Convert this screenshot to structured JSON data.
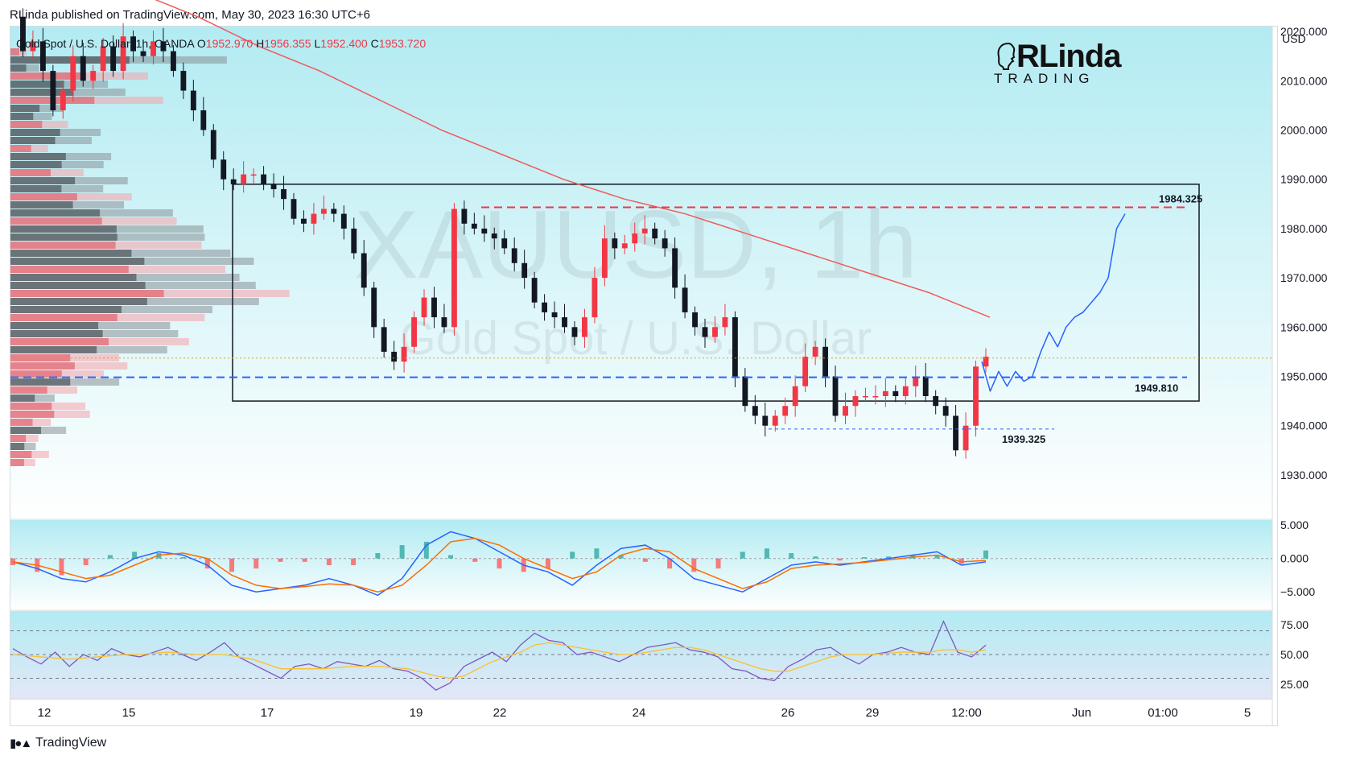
{
  "publisher_line": "RLinda published on TradingView.com, May 30, 2023 16:30 UTC+6",
  "symbol": {
    "name": "Gold Spot / U.S. Dollar, 1h, OANDA",
    "o_label": "O",
    "o": "1952.970",
    "h_label": "H",
    "h": "1956.355",
    "l_label": "L",
    "l": "1952.400",
    "c_label": "C",
    "c": "1953.720"
  },
  "currency": "USD",
  "watermark": {
    "line1": "XAUUSD, 1h",
    "line2": "Gold Spot / U.S. Dollar"
  },
  "logo": {
    "main": "RLinda",
    "sub": "TRADING"
  },
  "brand": "TradingView",
  "colors": {
    "bg_top": "#b2ebf2",
    "bull": "#f23645",
    "bear": "#131722",
    "ma": "#f05a5a",
    "resistance": "#f23645",
    "support": "#2962ff",
    "forecast": "#2962ff",
    "macd": "#2962ff",
    "signal": "#ff6d00",
    "rsi": "#7e57c2",
    "rsi_ma": "#fbc02d"
  },
  "chart_data": [
    {
      "type": "line",
      "title": "Gold Spot / U.S. Dollar, 1h, OANDA",
      "x_ticks": [
        "12",
        "15",
        "17",
        "19",
        "22",
        "24",
        "26",
        "29",
        "12:00",
        "Jun",
        "01:00",
        "5"
      ],
      "y_ticks": [
        "2020.000",
        "2010.000",
        "2000.000",
        "1990.000",
        "1980.000",
        "1970.000",
        "1960.000",
        "1950.000",
        "1940.000",
        "1930.000"
      ],
      "ylim": [
        1921,
        2021
      ],
      "series": [
        {
          "kind": "price_path",
          "values": [
            2023,
            2016,
            2018,
            2012,
            2004,
            2008,
            2015,
            2010,
            2012,
            2017,
            2012,
            2019,
            2016,
            2015,
            2018,
            2016,
            2012,
            2008,
            2004,
            2000,
            1994,
            1990,
            1989,
            1991,
            1991,
            1989,
            1988,
            1986,
            1982,
            1981,
            1983,
            1984,
            1983,
            1980,
            1975,
            1968,
            1960,
            1955,
            1953,
            1956,
            1962,
            1966,
            1962,
            1960,
            1984,
            1981,
            1980,
            1979,
            1978,
            1976,
            1973,
            1970,
            1965,
            1963,
            1962,
            1960,
            1958,
            1962,
            1970,
            1978,
            1976,
            1977,
            1979,
            1980,
            1978,
            1976,
            1968,
            1963,
            1960,
            1958,
            1960,
            1962,
            1950,
            1944,
            1942,
            1940,
            1942,
            1944,
            1948,
            1954,
            1956,
            1950,
            1942,
            1944,
            1946,
            1946,
            1946,
            1947,
            1946,
            1948,
            1950,
            1946,
            1944,
            1942,
            1935,
            1940,
            1952,
            1954
          ]
        },
        {
          "kind": "moving_average",
          "name": "",
          "values": [
            2028,
            2023,
            2017,
            2012,
            2006,
            2000,
            1995,
            1990,
            1986,
            1983,
            1979,
            1975,
            1971,
            1967,
            1962
          ]
        },
        {
          "kind": "level",
          "name": "1984.325",
          "value": 1984.325
        },
        {
          "kind": "level",
          "name": "1949.810",
          "value": 1949.81
        },
        {
          "kind": "level",
          "name": "1939.325",
          "value": 1939.325
        },
        {
          "kind": "forecast",
          "values": [
            1953,
            1947,
            1951,
            1948,
            1951,
            1949,
            1950,
            1955,
            1959,
            1956,
            1960,
            1962,
            1963,
            1965,
            1967,
            1970,
            1980,
            1983
          ]
        }
      ],
      "range_box": {
        "top": 1989,
        "bottom": 1945
      }
    },
    {
      "type": "line",
      "title": "",
      "y_ticks": [
        "5.000",
        "0.000",
        "-5.000"
      ],
      "ylim": [
        -7.5,
        5.5
      ],
      "series": [
        {
          "name": "",
          "values": [
            -0.5,
            -1.5,
            -3,
            -3.5,
            -2,
            0,
            1,
            0.5,
            -1,
            -4,
            -5,
            -4.5,
            -4,
            -3,
            -4,
            -5.5,
            -3,
            2,
            4,
            3,
            1,
            -1,
            -2,
            -4,
            -1,
            1.5,
            2,
            0,
            -3,
            -4,
            -5,
            -3,
            -1,
            -0.5,
            -1,
            -0.5,
            0,
            0.5,
            1,
            -1,
            -0.5
          ]
        },
        {
          "name": "",
          "values": [
            -0.5,
            -1,
            -2,
            -3,
            -2.5,
            -1,
            0.5,
            0.8,
            0,
            -2.5,
            -4,
            -4.5,
            -4.2,
            -3.8,
            -4,
            -5,
            -4,
            -1,
            2.5,
            3,
            2,
            0,
            -1.5,
            -3,
            -2,
            0.5,
            1.5,
            1,
            -1.5,
            -3,
            -4.5,
            -3.5,
            -1.5,
            -1,
            -0.8,
            -0.6,
            -0.2,
            0.2,
            0.5,
            -0.5,
            -0.3
          ]
        },
        {
          "name": "",
          "kind": "histogram",
          "values": [
            -1,
            -2,
            -2.5,
            -1,
            0.5,
            1,
            0.8,
            0.2,
            -1.5,
            -2,
            -1.5,
            -0.5,
            -0.5,
            -1,
            -1,
            0.8,
            2,
            2.5,
            0.5,
            -0.5,
            -1.5,
            -2,
            -1.5,
            1,
            1.5,
            0.5,
            -0.5,
            -1.5,
            -2,
            -1.5,
            1,
            1.5,
            0.8,
            0.3,
            -0.3,
            0.2,
            0.3,
            0.5,
            0.4,
            -0.8,
            1.2
          ]
        }
      ]
    },
    {
      "type": "line",
      "title": "",
      "y_ticks": [
        "75.00",
        "50.00",
        "25.00"
      ],
      "ylim": [
        14,
        86
      ],
      "series": [
        {
          "name": "",
          "values": [
            55,
            48,
            42,
            52,
            40,
            50,
            45,
            55,
            50,
            48,
            52,
            56,
            50,
            45,
            52,
            60,
            48,
            42,
            36,
            30,
            40,
            42,
            38,
            44,
            42,
            40,
            45,
            38,
            36,
            30,
            20,
            26,
            40,
            46,
            52,
            44,
            58,
            68,
            62,
            60,
            50,
            52,
            48,
            44,
            50,
            56,
            58,
            60,
            54,
            52,
            48,
            38,
            36,
            30,
            28,
            40,
            46,
            54,
            56,
            48,
            42,
            50,
            52,
            56,
            52,
            50,
            78,
            52,
            48,
            58
          ]
        },
        {
          "name": "",
          "values": [
            50,
            49,
            48,
            47,
            46,
            47,
            48,
            49,
            50,
            50,
            51,
            52,
            51,
            50,
            50,
            50,
            48,
            46,
            42,
            38,
            38,
            38,
            38,
            39,
            40,
            40,
            40,
            39,
            38,
            35,
            32,
            30,
            32,
            38,
            44,
            48,
            52,
            58,
            60,
            58,
            56,
            54,
            52,
            50,
            50,
            52,
            54,
            56,
            56,
            54,
            50,
            46,
            42,
            38,
            36,
            36,
            40,
            44,
            48,
            50,
            50,
            50,
            51,
            52,
            52,
            52,
            54,
            54,
            52,
            54
          ]
        }
      ],
      "levels": [
        70,
        50,
        30
      ]
    }
  ]
}
